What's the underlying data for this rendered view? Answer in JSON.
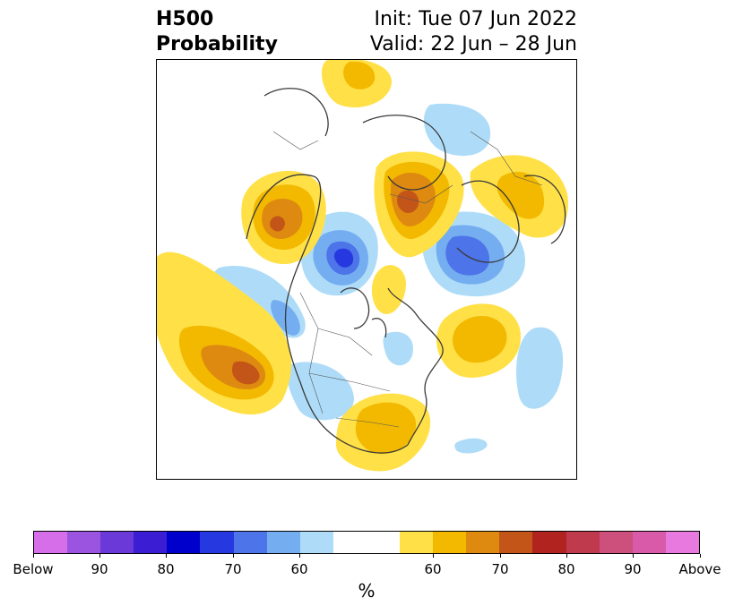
{
  "header": {
    "title_line1": "H500",
    "title_line2": "Probability",
    "init": "Init: Tue 07 Jun 2022",
    "valid": "Valid: 22 Jun – 28 Jun"
  },
  "colorbar": {
    "unit": "%",
    "colors": [
      "#d56ee8",
      "#9b54e0",
      "#6b39d8",
      "#3b1dd4",
      "#0000cd",
      "#2639e0",
      "#4d74e8",
      "#74aef0",
      "#aedcf8",
      "#ffffff",
      "#ffffff",
      "#ffe046",
      "#f2b900",
      "#de8a10",
      "#c45519",
      "#b0231f",
      "#c03a4e",
      "#cc4f7c",
      "#d85aa8",
      "#e879de"
    ],
    "ticks": [
      "Below",
      "90",
      "80",
      "70",
      "60",
      "60",
      "70",
      "80",
      "90",
      "Above"
    ]
  },
  "map": {
    "projection": "north-polar stereographic",
    "region": "North America / Arctic",
    "below_color": "#4d74e8",
    "above_color": "#f2b900"
  }
}
